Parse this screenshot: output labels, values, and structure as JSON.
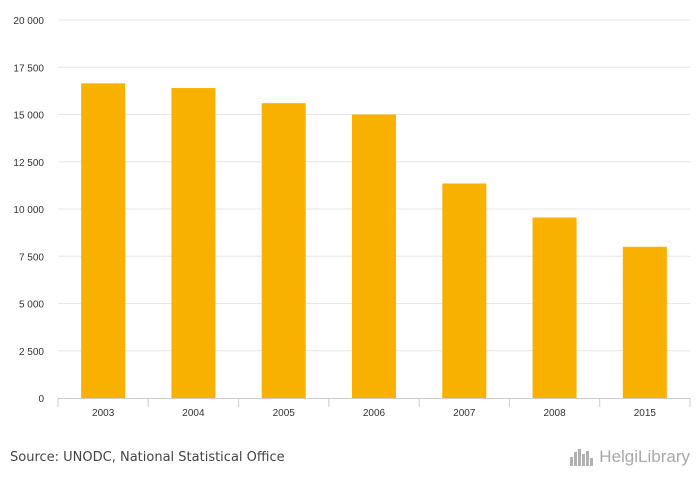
{
  "chart_data": {
    "type": "bar",
    "categories": [
      "2003",
      "2004",
      "2005",
      "2006",
      "2007",
      "2008",
      "2015"
    ],
    "values": [
      16650,
      16400,
      15600,
      15000,
      11350,
      9550,
      8000
    ],
    "ylim": [
      0,
      20000
    ],
    "yticks": [
      0,
      2500,
      5000,
      7500,
      10000,
      12500,
      15000,
      17500,
      20000
    ],
    "ytick_labels": [
      "0",
      "2 500",
      "5 000",
      "7 500",
      "10 000",
      "12 500",
      "15 000",
      "17 500",
      "20 000"
    ],
    "grid": true,
    "bar_color": "#f9b100"
  },
  "source": "Source: UNODC, National Statistical Office",
  "logo_text": "HelgiLibrary",
  "logo_icon": "city-skyline-icon"
}
